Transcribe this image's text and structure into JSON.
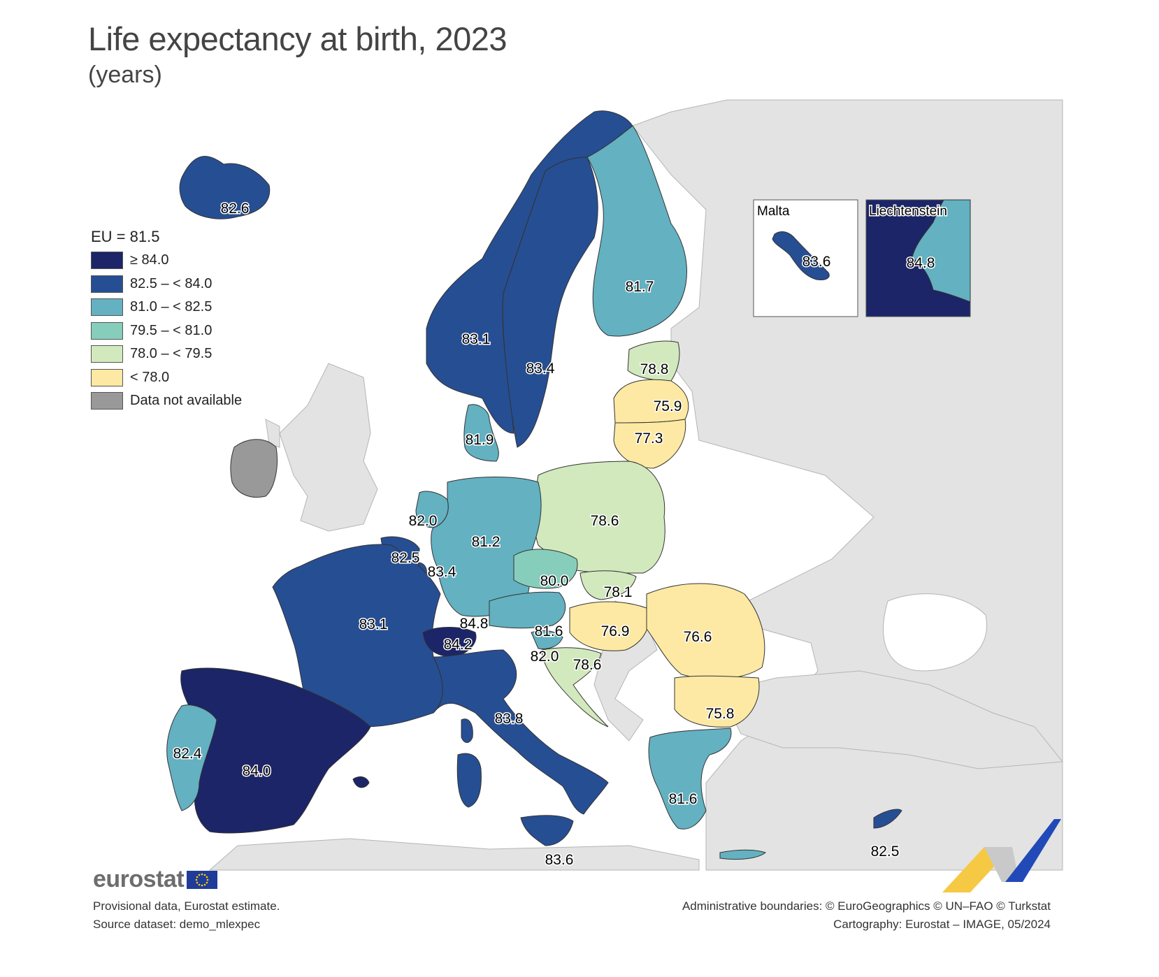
{
  "title": "Life expectancy at birth, 2023",
  "subtitle": "(years)",
  "legend": {
    "title": "EU = 81.5",
    "items": [
      {
        "label": "≥ 84.0",
        "color": "#1b2567"
      },
      {
        "label": "82.5 – < 84.0",
        "color": "#264e93"
      },
      {
        "label": "81.0 – < 82.5",
        "color": "#63b1c1"
      },
      {
        "label": "79.5 – < 81.0",
        "color": "#86cebb"
      },
      {
        "label": "78.0 – < 79.5",
        "color": "#d2e9be"
      },
      {
        "label": "< 78.0",
        "color": "#fde9a3"
      },
      {
        "label": "Data not available",
        "color": "#999999"
      }
    ]
  },
  "countries": [
    {
      "value": "82.6"
    },
    {
      "value": "83.1"
    },
    {
      "value": "83.4"
    },
    {
      "value": "81.7"
    },
    {
      "value": "78.8"
    },
    {
      "value": "75.9"
    },
    {
      "value": "77.3"
    },
    {
      "value": "81.9"
    },
    {
      "value": "78.6"
    },
    {
      "value": "82.0"
    },
    {
      "value": "81.2"
    },
    {
      "value": "82.5"
    },
    {
      "value": "83.4"
    },
    {
      "value": "80.0"
    },
    {
      "value": "78.1"
    },
    {
      "value": "83.1"
    },
    {
      "value": "84.8"
    },
    {
      "value": "84.2"
    },
    {
      "value": "81.6"
    },
    {
      "value": "76.9"
    },
    {
      "value": "76.6"
    },
    {
      "value": "82.0"
    },
    {
      "value": "78.6"
    },
    {
      "value": "83.8"
    },
    {
      "value": "75.8"
    },
    {
      "value": "82.4"
    },
    {
      "value": "84.0"
    },
    {
      "value": "81.6"
    },
    {
      "value": "83.6"
    },
    {
      "value": "82.5"
    }
  ],
  "insets": {
    "malta": {
      "title": "Malta",
      "value": "83.6"
    },
    "liechtenstein": {
      "title": "Liechtenstein",
      "value": "84.8"
    }
  },
  "brand": "eurostat",
  "footnote": {
    "line1": "Provisional data, Eurostat estimate.",
    "line2": "Source dataset: demo_mlexpec"
  },
  "credits": {
    "line1": "Administrative boundaries: © EuroGeographics © UN–FAO © Turkstat",
    "line2": "Cartography: Eurostat – IMAGE, 05/2024"
  }
}
